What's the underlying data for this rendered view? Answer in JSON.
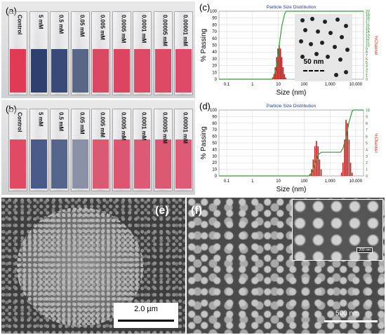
{
  "panel_labels": {
    "a": "(a)",
    "b": "(b)",
    "c": "(c)",
    "d": "(d)",
    "e": "(e)",
    "f": "(f)"
  },
  "cuvette_labels": [
    "Control",
    "5 mM",
    "0.5 mM",
    "0.05 mM",
    "0.005 mM",
    "0.0005 mM",
    "0.0001 mM",
    "0.00005 mM",
    "0.00001 mM"
  ],
  "cuvette_colors_a": [
    "#e03a55",
    "#2f3f6e",
    "#3a4a78",
    "#5a6688",
    "#d94a62",
    "#dc4460",
    "#de4a65",
    "#dc4a66",
    "#df4a68"
  ],
  "cuvette_colors_b": [
    "#e04a62",
    "#4a5a88",
    "#55658c",
    "#8a90a6",
    "#db5a72",
    "#dd5570",
    "#de5a74",
    "#dc5872",
    "#df5a76"
  ],
  "inset_c": {
    "scale_label": "50 nm"
  },
  "sem_e": {
    "scale_label": "2.0 µm"
  },
  "sem_f": {
    "scale_label": "500 nm",
    "inset_scale_label": "200 nm"
  },
  "chart_data": [
    {
      "type": "bar",
      "title": "Particle Size Distribution",
      "xlabel": "Size (nm)",
      "ylabel": "% Passing",
      "y2label": "%Channel",
      "xscale": "log",
      "xlim": [
        0.05,
        20000
      ],
      "ylim": [
        0,
        100
      ],
      "y2lim": [
        0,
        20
      ],
      "xticks": [
        "0.1",
        "1",
        "10",
        "100",
        "1,000",
        "10,000"
      ],
      "yticks": [
        "0",
        "10",
        "20",
        "30",
        "40",
        "50",
        "60",
        "70",
        "80",
        "90",
        "100"
      ],
      "y2ticks": [
        "0",
        "1",
        "2",
        "3",
        "4",
        "5",
        "6",
        "7",
        "8",
        "9",
        "10",
        "11",
        "12",
        "13",
        "14",
        "15",
        "16",
        "17",
        "18",
        "19",
        "20"
      ],
      "bars": {
        "x": [
          6.0,
          6.8,
          7.6,
          8.6,
          9.6,
          10.8,
          12.1,
          13.6,
          15.3,
          17.2,
          19.3
        ],
        "values": [
          0.5,
          1.5,
          3.5,
          6.5,
          9.0,
          10.0,
          9.0,
          6.5,
          3.5,
          1.5,
          0.5
        ]
      },
      "cumulative": {
        "x": [
          0.05,
          5.5,
          7,
          8.6,
          10.8,
          13.6,
          17.2,
          20,
          20000
        ],
        "values": [
          0,
          0,
          5,
          20,
          50,
          78,
          95,
          100,
          100
        ]
      },
      "grid": true
    },
    {
      "type": "bar",
      "title": "Particle Size Distribution",
      "xlabel": "Size (nm)",
      "ylabel": "% Passing",
      "y2label": "%Channel",
      "xscale": "log",
      "xlim": [
        0.05,
        20000
      ],
      "ylim": [
        0,
        100
      ],
      "y2lim": [
        0,
        10
      ],
      "xticks": [
        "0.1",
        "1",
        "10",
        "100",
        "1,000",
        "10,000"
      ],
      "yticks": [
        "0",
        "10",
        "20",
        "30",
        "40",
        "50",
        "60",
        "70",
        "80",
        "90",
        "100"
      ],
      "y2ticks": [
        "0",
        "1",
        "2",
        "3",
        "4",
        "5",
        "6",
        "7",
        "8",
        "9",
        "10"
      ],
      "bars": {
        "x": [
          170,
          195,
          225,
          260,
          300,
          345,
          395,
          455,
          2800,
          3200,
          3700,
          4200,
          4800,
          5500,
          6300,
          7200
        ],
        "values": [
          0.3,
          1.0,
          2.5,
          4.5,
          5.3,
          4.5,
          2.5,
          1.0,
          0.5,
          2.0,
          5.5,
          8.5,
          8.0,
          5.5,
          2.0,
          0.5
        ]
      },
      "cumulative": {
        "x": [
          0.05,
          150,
          200,
          260,
          345,
          455,
          500,
          2600,
          3200,
          4200,
          5500,
          7200,
          8000,
          20000
        ],
        "values": [
          0,
          0,
          5,
          18,
          32,
          36,
          36,
          36,
          42,
          58,
          82,
          98,
          100,
          100
        ]
      },
      "grid": true
    }
  ]
}
